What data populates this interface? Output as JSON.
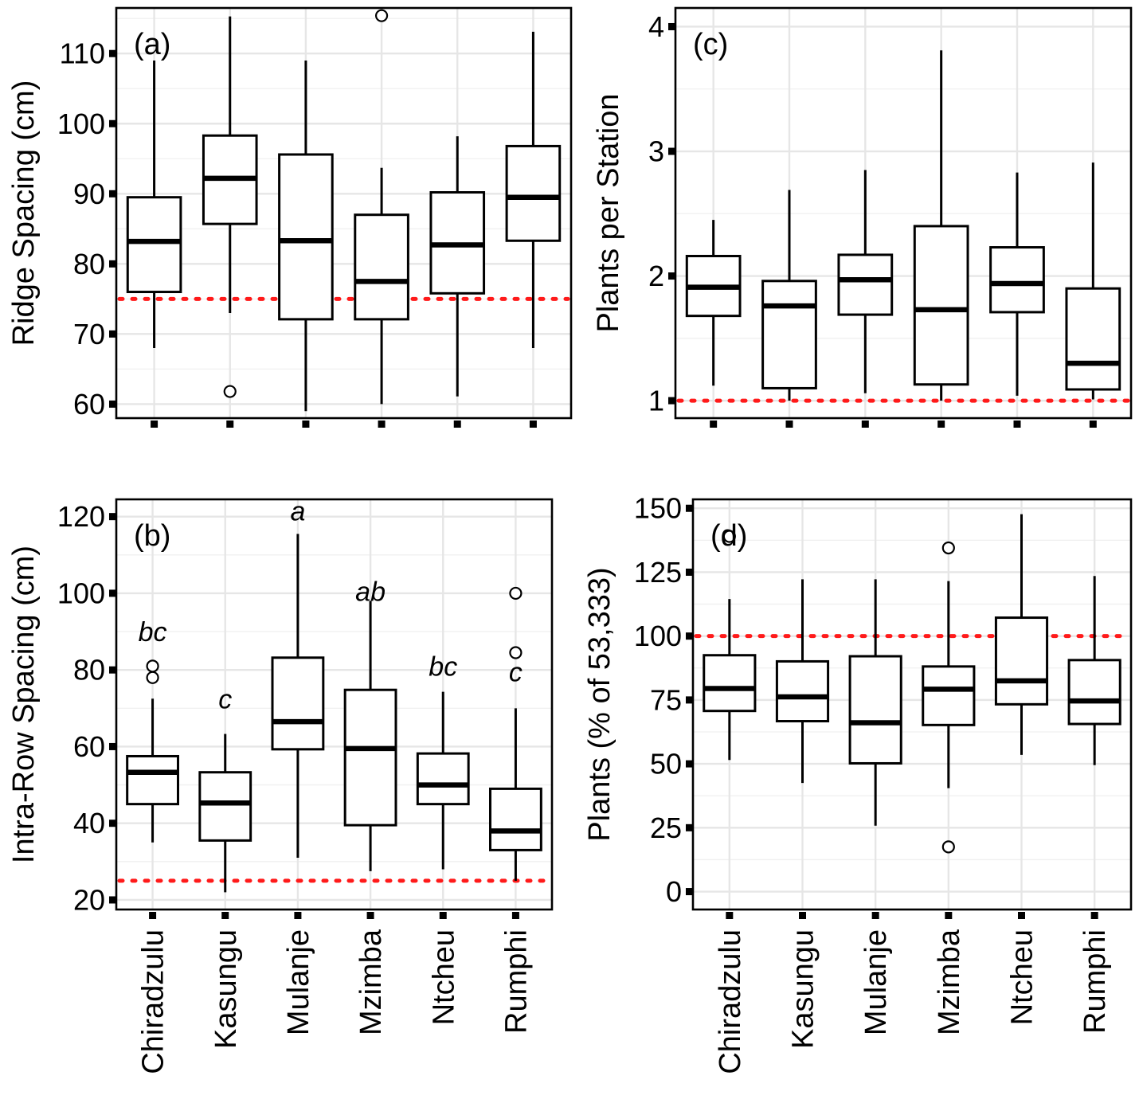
{
  "chart_data": [
    {
      "id": "a",
      "type": "box",
      "tag": "(a)",
      "ylabel": "Ridge Spacing (cm)",
      "xlabel": "",
      "categories": [
        "Chiradzulu",
        "Kasungu",
        "Mulanje",
        "Mzimba",
        "Ntcheu",
        "Rumphi"
      ],
      "show_category_labels": false,
      "ylim": [
        58,
        116.5
      ],
      "yticks": [
        60,
        70,
        80,
        90,
        100,
        110
      ],
      "ytick_labels": [
        "60",
        "70",
        "80",
        "90",
        "100",
        "110"
      ],
      "reference_line": 75,
      "boxes": [
        {
          "category": "Chiradzulu",
          "whisker_low": 68,
          "q1": 76,
          "median": 83.2,
          "q3": 89.5,
          "whisker_high": 109,
          "outliers": []
        },
        {
          "category": "Kasungu",
          "whisker_low": 73,
          "q1": 85.7,
          "median": 92.2,
          "q3": 98.3,
          "whisker_high": 115.3,
          "outliers": [
            61.8
          ]
        },
        {
          "category": "Mulanje",
          "whisker_low": 59,
          "q1": 72.1,
          "median": 83.3,
          "q3": 95.6,
          "whisker_high": 109,
          "outliers": []
        },
        {
          "category": "Mzimba",
          "whisker_low": 60,
          "q1": 72.1,
          "median": 77.5,
          "q3": 87,
          "whisker_high": 93.7,
          "outliers": [
            115.4
          ]
        },
        {
          "category": "Ntcheu",
          "whisker_low": 61.1,
          "q1": 75.8,
          "median": 82.7,
          "q3": 90.2,
          "whisker_high": 98.2,
          "outliers": []
        },
        {
          "category": "Rumphi",
          "whisker_low": 68,
          "q1": 83.3,
          "median": 89.5,
          "q3": 96.8,
          "whisker_high": 113.1,
          "outliers": []
        }
      ],
      "sig_letters": []
    },
    {
      "id": "b",
      "type": "box",
      "tag": "(b)",
      "ylabel": "Intra-Row Spacing (cm)",
      "xlabel": "",
      "categories": [
        "Chiradzulu",
        "Kasungu",
        "Mulanje",
        "Mzimba",
        "Ntcheu",
        "Rumphi"
      ],
      "show_category_labels": true,
      "ylim": [
        17.5,
        124.5
      ],
      "yticks": [
        20,
        40,
        60,
        80,
        100,
        120
      ],
      "ytick_labels": [
        "20",
        "40",
        "60",
        "80",
        "100",
        "120"
      ],
      "reference_line": 25,
      "boxes": [
        {
          "category": "Chiradzulu",
          "whisker_low": 35,
          "q1": 45,
          "median": 53.3,
          "q3": 57.5,
          "whisker_high": 72.5,
          "outliers": [
            78,
            81
          ]
        },
        {
          "category": "Kasungu",
          "whisker_low": 22,
          "q1": 35.5,
          "median": 45.3,
          "q3": 53.3,
          "whisker_high": 63.3,
          "outliers": []
        },
        {
          "category": "Mulanje",
          "whisker_low": 31,
          "q1": 59.3,
          "median": 66.5,
          "q3": 83.2,
          "whisker_high": 115.5,
          "outliers": []
        },
        {
          "category": "Mzimba",
          "whisker_low": 27.5,
          "q1": 39.5,
          "median": 59.5,
          "q3": 74.8,
          "whisker_high": 98,
          "outliers": []
        },
        {
          "category": "Ntcheu",
          "whisker_low": 28,
          "q1": 45,
          "median": 50,
          "q3": 58.2,
          "whisker_high": 74.3,
          "outliers": []
        },
        {
          "category": "Rumphi",
          "whisker_low": 25,
          "q1": 33,
          "median": 38,
          "q3": 49,
          "whisker_high": 70,
          "outliers": [
            84.5,
            100
          ]
        }
      ],
      "sig_letters": [
        {
          "category": "Chiradzulu",
          "label": "bc",
          "y": 87.5
        },
        {
          "category": "Kasungu",
          "label": "c",
          "y": 70
        },
        {
          "category": "Mulanje",
          "label": "a",
          "y": 119
        },
        {
          "category": "Mzimba",
          "label": "ab",
          "y": 98
        },
        {
          "category": "Ntcheu",
          "label": "bc",
          "y": 78.5
        },
        {
          "category": "Rumphi",
          "label": "c",
          "y": 77
        }
      ]
    },
    {
      "id": "c",
      "type": "box",
      "tag": "(c)",
      "ylabel": "Plants per Station",
      "xlabel": "",
      "categories": [
        "Chiradzulu",
        "Kasungu",
        "Mulanje",
        "Mzimba",
        "Ntcheu",
        "Rumphi"
      ],
      "show_category_labels": false,
      "ylim": [
        0.86,
        4.15
      ],
      "yticks": [
        1,
        2,
        3,
        4
      ],
      "ytick_labels": [
        "1",
        "2",
        "3",
        "4"
      ],
      "reference_line": 1,
      "boxes": [
        {
          "category": "Chiradzulu",
          "whisker_low": 1.12,
          "q1": 1.68,
          "median": 1.91,
          "q3": 2.16,
          "whisker_high": 2.45,
          "outliers": []
        },
        {
          "category": "Kasungu",
          "whisker_low": 1,
          "q1": 1.1,
          "median": 1.76,
          "q3": 1.96,
          "whisker_high": 2.69,
          "outliers": []
        },
        {
          "category": "Mulanje",
          "whisker_low": 1.06,
          "q1": 1.69,
          "median": 1.97,
          "q3": 2.17,
          "whisker_high": 2.85,
          "outliers": []
        },
        {
          "category": "Mzimba",
          "whisker_low": 1,
          "q1": 1.13,
          "median": 1.73,
          "q3": 2.4,
          "whisker_high": 3.81,
          "outliers": []
        },
        {
          "category": "Ntcheu",
          "whisker_low": 1.04,
          "q1": 1.71,
          "median": 1.94,
          "q3": 2.23,
          "whisker_high": 2.83,
          "outliers": []
        },
        {
          "category": "Rumphi",
          "whisker_low": 1.01,
          "q1": 1.09,
          "median": 1.3,
          "q3": 1.9,
          "whisker_high": 2.91,
          "outliers": []
        }
      ],
      "sig_letters": []
    },
    {
      "id": "d",
      "type": "box",
      "tag": "(d)",
      "ylabel": "Plants (% of 53,333)",
      "xlabel": "",
      "categories": [
        "Chiradzulu",
        "Kasungu",
        "Mulanje",
        "Mzimba",
        "Ntcheu",
        "Rumphi"
      ],
      "show_category_labels": true,
      "ylim": [
        -7,
        153.5
      ],
      "yticks": [
        0,
        25,
        50,
        75,
        100,
        125,
        150
      ],
      "ytick_labels": [
        "0",
        "25",
        "50",
        "75",
        "100",
        "125",
        "150"
      ],
      "reference_line": 100,
      "boxes": [
        {
          "category": "Chiradzulu",
          "whisker_low": 51.5,
          "q1": 70.7,
          "median": 79.5,
          "q3": 92.5,
          "whisker_high": 114.5,
          "outliers": [
            139
          ]
        },
        {
          "category": "Kasungu",
          "whisker_low": 42.5,
          "q1": 66.7,
          "median": 76.2,
          "q3": 90.1,
          "whisker_high": 122.2,
          "outliers": []
        },
        {
          "category": "Mulanje",
          "whisker_low": 25.8,
          "q1": 50.2,
          "median": 66.1,
          "q3": 92.1,
          "whisker_high": 122.2,
          "outliers": []
        },
        {
          "category": "Mzimba",
          "whisker_low": 40.5,
          "q1": 65.2,
          "median": 79.2,
          "q3": 88.1,
          "whisker_high": 121.5,
          "outliers": [
            17.5,
            134.5
          ]
        },
        {
          "category": "Ntcheu",
          "whisker_low": 53.5,
          "q1": 73.3,
          "median": 82.5,
          "q3": 107.2,
          "whisker_high": 147.7,
          "outliers": []
        },
        {
          "category": "Rumphi",
          "whisker_low": 49.5,
          "q1": 65.6,
          "median": 74.6,
          "q3": 90.6,
          "whisker_high": 123.5,
          "outliers": []
        }
      ],
      "sig_letters": []
    }
  ],
  "colors": {
    "reference_line": "#ff1a1a",
    "box_outline": "#000000",
    "grid": "#e6e6e6",
    "background": "#ffffff"
  }
}
